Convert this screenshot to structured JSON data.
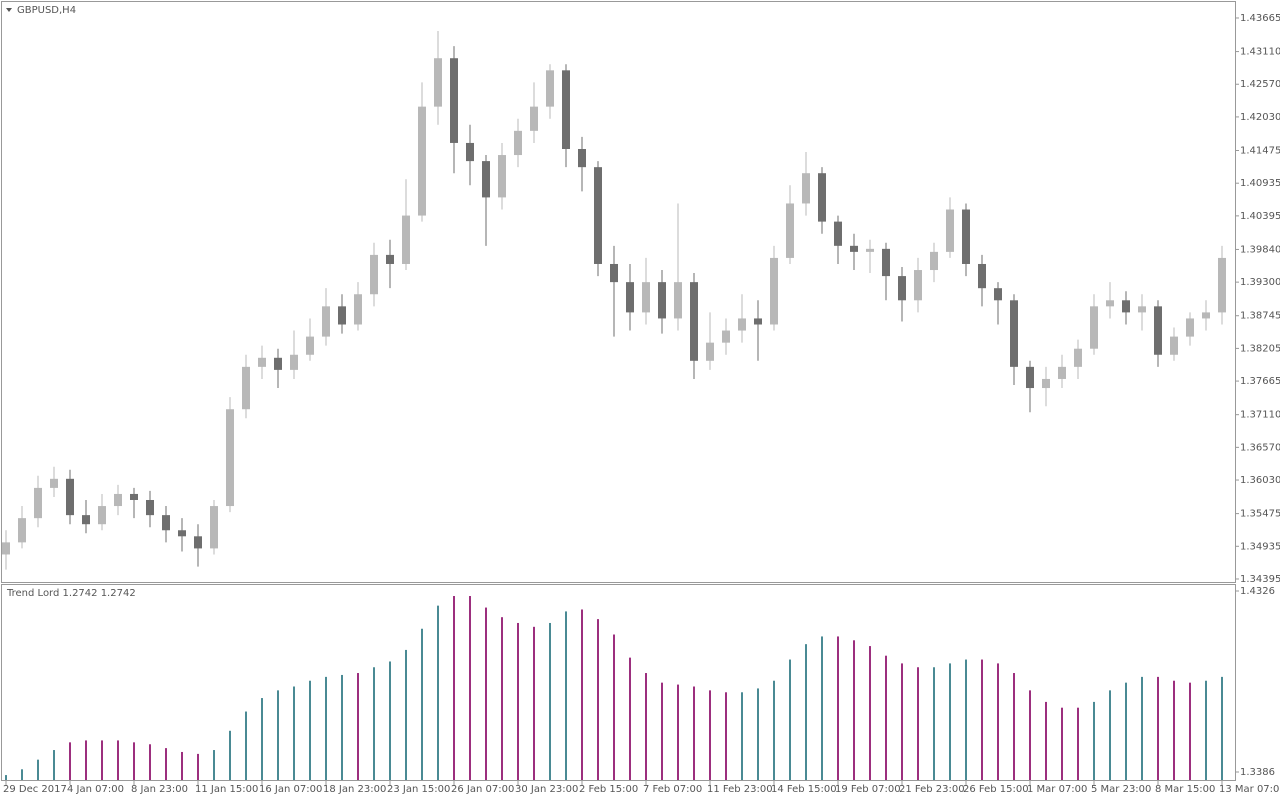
{
  "chart_data": [
    {
      "type": "candlestick",
      "title": "GBPUSD,H4",
      "categories": [
        "29 Dec 2017",
        null,
        null,
        null,
        "4 Jan 07:00",
        null,
        null,
        null,
        "8 Jan 23:00",
        null,
        null,
        null,
        "11 Jan 15:00",
        null,
        null,
        null,
        "16 Jan 07:00",
        null,
        null,
        null,
        "18 Jan 23:00",
        null,
        null,
        null,
        "23 Jan 15:00",
        null,
        null,
        null,
        "26 Jan 07:00",
        null,
        null,
        null,
        "30 Jan 23:00",
        null,
        null,
        null,
        "2 Feb 15:00",
        null,
        null,
        null,
        "7 Feb 07:00",
        null,
        null,
        null,
        "11 Feb 23:00",
        null,
        null,
        null,
        "14 Feb 15:00",
        null,
        null,
        null,
        "19 Feb 07:00",
        null,
        null,
        null,
        "21 Feb 23:00",
        null,
        null,
        null,
        "26 Feb 15:00",
        null,
        null,
        null,
        "1 Mar 07:00",
        null,
        null,
        null,
        "5 Mar 23:00",
        null,
        null,
        null,
        "8 Mar 15:00",
        null,
        null,
        null,
        "13 Mar 07:00"
      ],
      "open": [
        1.348,
        1.35,
        1.354,
        1.359,
        1.3605,
        1.3545,
        1.353,
        1.356,
        1.358,
        1.357,
        1.3545,
        1.352,
        1.351,
        1.349,
        1.356,
        1.372,
        1.379,
        1.3805,
        1.3785,
        1.381,
        1.384,
        1.389,
        1.386,
        1.391,
        1.3975,
        1.396,
        1.404,
        1.422,
        1.43,
        1.416,
        1.413,
        1.407,
        1.414,
        1.418,
        1.422,
        1.428,
        1.415,
        1.412,
        1.396,
        1.393,
        1.388,
        1.393,
        1.387,
        1.393,
        1.38,
        1.383,
        1.385,
        1.387,
        1.386,
        1.397,
        1.406,
        1.411,
        1.403,
        1.399,
        1.398,
        1.3985,
        1.394,
        1.39,
        1.395,
        1.398,
        1.405,
        1.396,
        1.392,
        1.39,
        1.379,
        1.3755,
        1.377,
        1.379,
        1.382,
        1.389,
        1.39,
        1.388,
        1.389,
        1.381,
        1.384,
        1.387,
        1.388
      ],
      "high": [
        1.352,
        1.356,
        1.361,
        1.3625,
        1.362,
        1.357,
        1.358,
        1.3595,
        1.359,
        1.3585,
        1.356,
        1.354,
        1.353,
        1.357,
        1.374,
        1.381,
        1.3825,
        1.382,
        1.385,
        1.387,
        1.392,
        1.391,
        1.393,
        1.3995,
        1.4,
        1.41,
        1.426,
        1.4345,
        1.432,
        1.419,
        1.414,
        1.416,
        1.42,
        1.426,
        1.429,
        1.429,
        1.417,
        1.413,
        1.399,
        1.396,
        1.397,
        1.395,
        1.406,
        1.3945,
        1.388,
        1.387,
        1.391,
        1.39,
        1.399,
        1.409,
        1.4145,
        1.412,
        1.404,
        1.401,
        1.4,
        1.3995,
        1.3955,
        1.397,
        1.3995,
        1.407,
        1.406,
        1.3975,
        1.393,
        1.391,
        1.38,
        1.379,
        1.381,
        1.3835,
        1.391,
        1.393,
        1.3915,
        1.391,
        1.39,
        1.3855,
        1.388,
        1.39,
        1.399
      ],
      "low": [
        1.3455,
        1.349,
        1.3525,
        1.3575,
        1.353,
        1.3515,
        1.352,
        1.3545,
        1.354,
        1.3525,
        1.35,
        1.3485,
        1.346,
        1.348,
        1.355,
        1.3705,
        1.377,
        1.3755,
        1.377,
        1.38,
        1.3825,
        1.3845,
        1.385,
        1.389,
        1.392,
        1.395,
        1.403,
        1.419,
        1.411,
        1.409,
        1.399,
        1.405,
        1.412,
        1.416,
        1.42,
        1.412,
        1.408,
        1.394,
        1.384,
        1.385,
        1.386,
        1.3845,
        1.385,
        1.377,
        1.3785,
        1.381,
        1.383,
        1.38,
        1.385,
        1.396,
        1.404,
        1.401,
        1.396,
        1.395,
        1.3945,
        1.39,
        1.3865,
        1.388,
        1.393,
        1.397,
        1.394,
        1.389,
        1.386,
        1.376,
        1.3715,
        1.3725,
        1.3755,
        1.377,
        1.381,
        1.387,
        1.386,
        1.385,
        1.379,
        1.38,
        1.3825,
        1.385,
        1.386
      ],
      "close": [
        1.35,
        1.354,
        1.359,
        1.3605,
        1.3545,
        1.353,
        1.356,
        1.358,
        1.357,
        1.3545,
        1.352,
        1.351,
        1.349,
        1.356,
        1.372,
        1.379,
        1.3805,
        1.3785,
        1.381,
        1.384,
        1.389,
        1.386,
        1.391,
        1.3975,
        1.396,
        1.404,
        1.422,
        1.43,
        1.416,
        1.413,
        1.407,
        1.414,
        1.418,
        1.422,
        1.428,
        1.415,
        1.412,
        1.396,
        1.393,
        1.388,
        1.393,
        1.387,
        1.393,
        1.38,
        1.383,
        1.385,
        1.387,
        1.386,
        1.397,
        1.406,
        1.411,
        1.403,
        1.399,
        1.398,
        1.3985,
        1.394,
        1.39,
        1.395,
        1.398,
        1.405,
        1.396,
        1.392,
        1.39,
        1.379,
        1.3755,
        1.377,
        1.379,
        1.382,
        1.389,
        1.39,
        1.388,
        1.389,
        1.381,
        1.384,
        1.387,
        1.388,
        1.397
      ],
      "up_color": "#b8b8b8",
      "down_color": "#6e6e6e",
      "ylim": [
        1.34345,
        1.43929
      ],
      "yticks": [
        1.43665,
        {
          "value": 1.4311,
          "label": "1.43110"
        },
        {
          "value": 1.4257,
          "label": "1.42570"
        },
        {
          "value": 1.4203,
          "label": "1.42030"
        },
        1.41475,
        1.40935,
        1.40395,
        {
          "value": 1.3984,
          "label": "1.39840"
        },
        {
          "value": 1.393,
          "label": "1.39300"
        },
        1.38745,
        1.38205,
        1.37665,
        {
          "value": 1.3711,
          "label": "1.37110"
        },
        {
          "value": 1.3657,
          "label": "1.36570"
        },
        {
          "value": 1.3603,
          "label": "1.36030"
        },
        1.35475,
        1.34935,
        1.34395
      ]
    },
    {
      "type": "bar",
      "title": "Trend Lord 1.2742 1.2742",
      "series": [
        {
          "color": "#4a8a94",
          "values": [
            1.337,
            1.34,
            1.345,
            1.35,
            null,
            null,
            null,
            null,
            null,
            null,
            null,
            null,
            null,
            1.35,
            1.36,
            1.37,
            1.377,
            1.381,
            1.383,
            1.386,
            1.388,
            1.389,
            null,
            1.393,
            1.396,
            1.402,
            1.413,
            1.425,
            null,
            null,
            null,
            null,
            null,
            null,
            1.416,
            1.422,
            null,
            null,
            null,
            null,
            null,
            null,
            null,
            null,
            null,
            null,
            1.38,
            1.382,
            1.386,
            1.397,
            1.405,
            1.409,
            null,
            null,
            null,
            null,
            null,
            null,
            1.393,
            1.395,
            1.397,
            null,
            null,
            null,
            null,
            null,
            null,
            null,
            1.375,
            1.381,
            1.385,
            1.388,
            null,
            null,
            null,
            1.386,
            1.388
          ]
        },
        {
          "color": "#9c2f7e",
          "values": [
            null,
            null,
            null,
            null,
            1.354,
            1.355,
            1.355,
            1.355,
            1.354,
            1.353,
            1.351,
            1.349,
            1.348,
            null,
            null,
            null,
            null,
            null,
            null,
            null,
            null,
            null,
            1.39,
            null,
            null,
            null,
            null,
            null,
            1.43,
            1.43,
            1.424,
            1.419,
            1.416,
            1.414,
            null,
            null,
            1.423,
            1.418,
            1.41,
            1.398,
            1.39,
            1.385,
            1.384,
            1.383,
            1.381,
            1.38,
            null,
            null,
            null,
            null,
            null,
            null,
            1.409,
            1.407,
            1.404,
            1.399,
            1.395,
            1.393,
            null,
            null,
            null,
            1.397,
            1.395,
            1.39,
            1.381,
            1.375,
            1.372,
            1.372,
            null,
            null,
            null,
            null,
            1.388,
            1.386,
            1.385,
            null,
            null
          ]
        }
      ],
      "ylim": [
        1.33444,
        1.43572
      ],
      "yticks": [
        1.4326,
        1.3386
      ]
    }
  ]
}
